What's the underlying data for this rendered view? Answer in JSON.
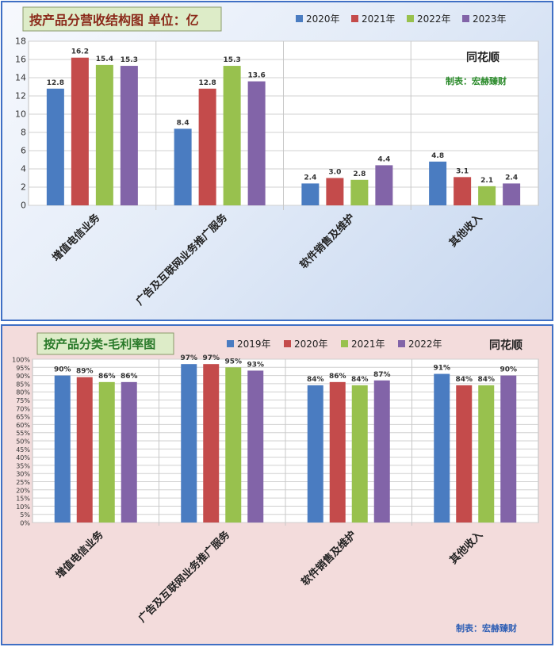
{
  "chart_data": [
    {
      "type": "bar",
      "title": "按产品分营收结构图 单位：亿",
      "brand": "同花顺",
      "credit": "制表：宏赫臻财",
      "categories": [
        "增值电信业务",
        "广告及互联网业务推广服务",
        "软件销售及维护",
        "其他收入"
      ],
      "series": [
        {
          "name": "2020年",
          "color": "#4a7cc1",
          "values": [
            12.8,
            8.4,
            2.4,
            4.8
          ]
        },
        {
          "name": "2021年",
          "color": "#c44b4b",
          "values": [
            16.2,
            12.8,
            3.0,
            3.1
          ]
        },
        {
          "name": "2022年",
          "color": "#98c14e",
          "values": [
            15.4,
            15.3,
            2.8,
            2.1
          ]
        },
        {
          "name": "2023年",
          "color": "#8264a8",
          "values": [
            15.3,
            13.6,
            4.4,
            2.4
          ]
        }
      ],
      "ylim": [
        0,
        18
      ],
      "yticks": [
        "0",
        "2",
        "4",
        "6",
        "8",
        "10",
        "12",
        "14",
        "16",
        "18"
      ],
      "grid": true,
      "legend": "top"
    },
    {
      "type": "bar",
      "title": "按产品分类-毛利率图",
      "brand": "同花顺",
      "credit": "制表：宏赫臻财",
      "categories": [
        "增值电信业务",
        "广告及互联网业务推广服务",
        "软件销售及维护",
        "其他收入"
      ],
      "series": [
        {
          "name": "2019年",
          "color": "#4a7cc1",
          "values": [
            90,
            97,
            84,
            91
          ]
        },
        {
          "name": "2020年",
          "color": "#c44b4b",
          "values": [
            89,
            97,
            86,
            84
          ]
        },
        {
          "name": "2021年",
          "color": "#98c14e",
          "values": [
            86,
            95,
            84,
            84
          ]
        },
        {
          "name": "2022年",
          "color": "#8264a8",
          "values": [
            86,
            93,
            87,
            90
          ]
        }
      ],
      "ylim": [
        0,
        100
      ],
      "yticks": [
        "0%",
        "5%",
        "10%",
        "15%",
        "20%",
        "25%",
        "30%",
        "35%",
        "40%",
        "45%",
        "50%",
        "55%",
        "60%",
        "65%",
        "70%",
        "75%",
        "80%",
        "85%",
        "90%",
        "95%",
        "100%"
      ],
      "grid": true,
      "legend": "top"
    }
  ]
}
